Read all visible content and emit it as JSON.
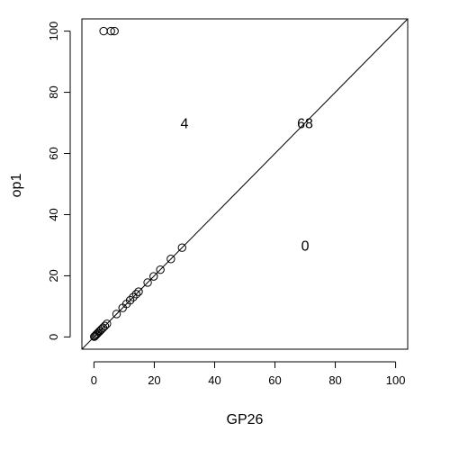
{
  "chart_data": {
    "type": "scatter",
    "title": "",
    "xlabel": "GP26",
    "ylabel": "op1",
    "xlim": [
      -4,
      104
    ],
    "ylim": [
      -4,
      104
    ],
    "xticks": [
      0,
      20,
      40,
      60,
      80,
      100
    ],
    "yticks": [
      0,
      20,
      40,
      60,
      80,
      100
    ],
    "grid": false,
    "reference_line": {
      "intercept": 0,
      "slope": 1
    },
    "series": [
      {
        "points": [
          {
            "x": 0.1,
            "y": 0.1
          },
          {
            "x": 0.3,
            "y": 0.3
          },
          {
            "x": 0.6,
            "y": 0.6
          },
          {
            "x": 0.9,
            "y": 0.9
          },
          {
            "x": 1.2,
            "y": 1.2
          },
          {
            "x": 1.6,
            "y": 1.6
          },
          {
            "x": 2.0,
            "y": 2.0
          },
          {
            "x": 2.5,
            "y": 2.5
          },
          {
            "x": 3.0,
            "y": 3.0
          },
          {
            "x": 3.6,
            "y": 3.6
          },
          {
            "x": 4.3,
            "y": 4.3
          },
          {
            "x": 7.5,
            "y": 7.5
          },
          {
            "x": 9.5,
            "y": 9.5
          },
          {
            "x": 10.8,
            "y": 10.8
          },
          {
            "x": 12.0,
            "y": 12.0
          },
          {
            "x": 13.0,
            "y": 13.0
          },
          {
            "x": 14.0,
            "y": 14.0
          },
          {
            "x": 14.8,
            "y": 14.8
          },
          {
            "x": 17.8,
            "y": 17.8
          },
          {
            "x": 19.8,
            "y": 19.8
          },
          {
            "x": 22.0,
            "y": 22.0
          },
          {
            "x": 25.5,
            "y": 25.5
          },
          {
            "x": 29.2,
            "y": 29.2
          },
          {
            "x": 3.2,
            "y": 100
          },
          {
            "x": 5.6,
            "y": 100
          },
          {
            "x": 6.8,
            "y": 100
          }
        ]
      }
    ],
    "annotations": [
      {
        "text": "4",
        "x": 30,
        "y": 70
      },
      {
        "text": "68",
        "x": 70,
        "y": 70
      },
      {
        "text": "0",
        "x": 70,
        "y": 30
      }
    ]
  }
}
